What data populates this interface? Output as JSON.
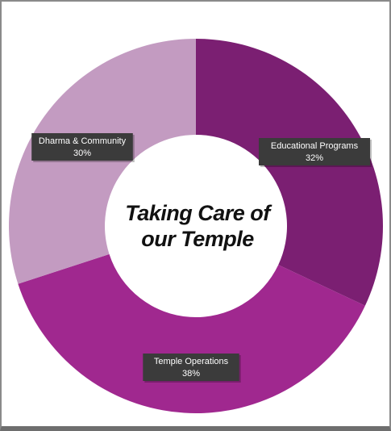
{
  "chart_data": {
    "type": "donut",
    "title": "Taking Care of our Temple",
    "categories": [
      "Educational Programs",
      "Temple Operations",
      "Dharma & Community"
    ],
    "values": [
      32,
      38,
      30
    ],
    "value_labels": [
      "32%",
      "38%",
      "30%"
    ],
    "colors": [
      "#7b1f72",
      "#a0288f",
      "#c39bc1"
    ]
  }
}
